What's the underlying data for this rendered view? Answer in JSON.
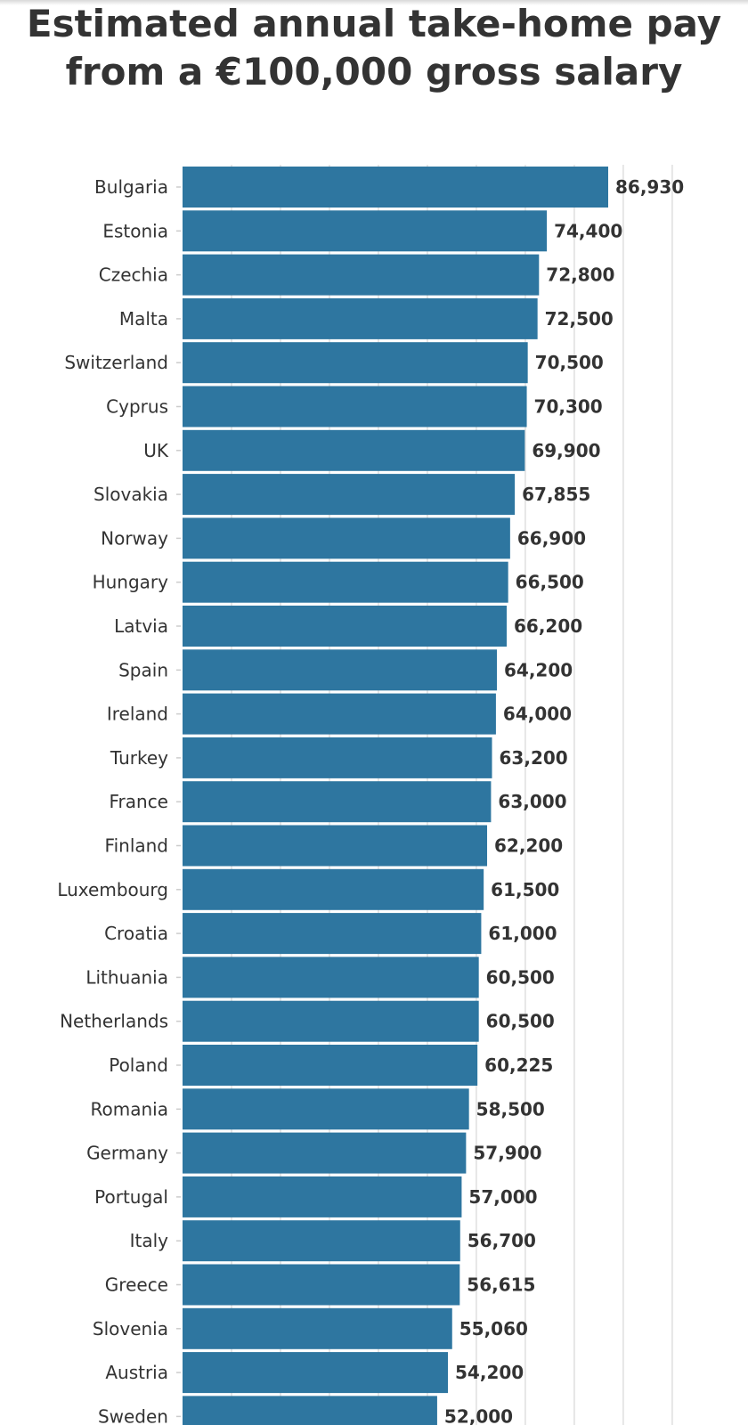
{
  "chart_data": {
    "type": "bar",
    "orientation": "horizontal",
    "title": "Estimated annual take-home pay from a €100,000 gross salary",
    "categories": [
      "Bulgaria",
      "Estonia",
      "Czechia",
      "Malta",
      "Switzerland",
      "Cyprus",
      "UK",
      "Slovakia",
      "Norway",
      "Hungary",
      "Latvia",
      "Spain",
      "Ireland",
      "Turkey",
      "France",
      "Finland",
      "Luxembourg",
      "Croatia",
      "Lithuania",
      "Netherlands",
      "Poland",
      "Romania",
      "Germany",
      "Portugal",
      "Italy",
      "Greece",
      "Slovenia",
      "Austria",
      "Sweden"
    ],
    "values": [
      86930,
      74400,
      72800,
      72500,
      70500,
      70300,
      69900,
      67855,
      66900,
      66500,
      66200,
      64200,
      64000,
      63200,
      63000,
      62200,
      61500,
      61000,
      60500,
      60500,
      60225,
      58500,
      57900,
      57000,
      56700,
      56615,
      55060,
      54200,
      52000
    ],
    "value_labels": [
      "86,930",
      "74,400",
      "72,800",
      "72,500",
      "70,500",
      "70,300",
      "69,900",
      "67,855",
      "66,900",
      "66,500",
      "66,200",
      "64,200",
      "64,000",
      "63,200",
      "63,000",
      "62,200",
      "61,500",
      "61,000",
      "60,500",
      "60,500",
      "60,225",
      "58,500",
      "57,900",
      "57,000",
      "56,700",
      "56,615",
      "55,060",
      "54,200",
      "52,000"
    ],
    "xlim": [
      0,
      100000
    ],
    "grid": true,
    "bar_color": "#2e76a0"
  }
}
